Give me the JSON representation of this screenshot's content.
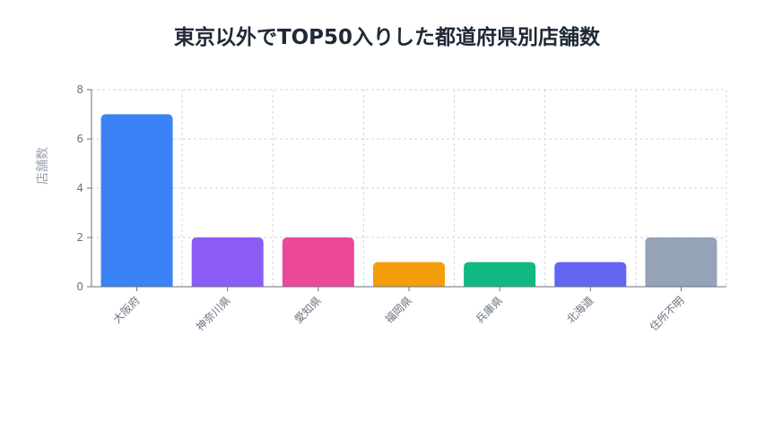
{
  "chart_data": {
    "type": "bar",
    "title": "東京以外でTOP50入りした都道府県別店舗数",
    "xlabel": "",
    "ylabel": "店舗数",
    "categories": [
      "大阪府",
      "神奈川県",
      "愛知県",
      "福岡県",
      "兵庫県",
      "北海道",
      "住所不明"
    ],
    "values": [
      7,
      2,
      2,
      1,
      1,
      1,
      2
    ],
    "colors": [
      "#3b82f6",
      "#8b5cf6",
      "#ec4899",
      "#f59e0b",
      "#10b981",
      "#6366f1",
      "#94a3b8"
    ],
    "ylim": [
      0,
      8
    ],
    "yticks": [
      0,
      2,
      4,
      6,
      8
    ],
    "grid": true,
    "legend": "none"
  }
}
